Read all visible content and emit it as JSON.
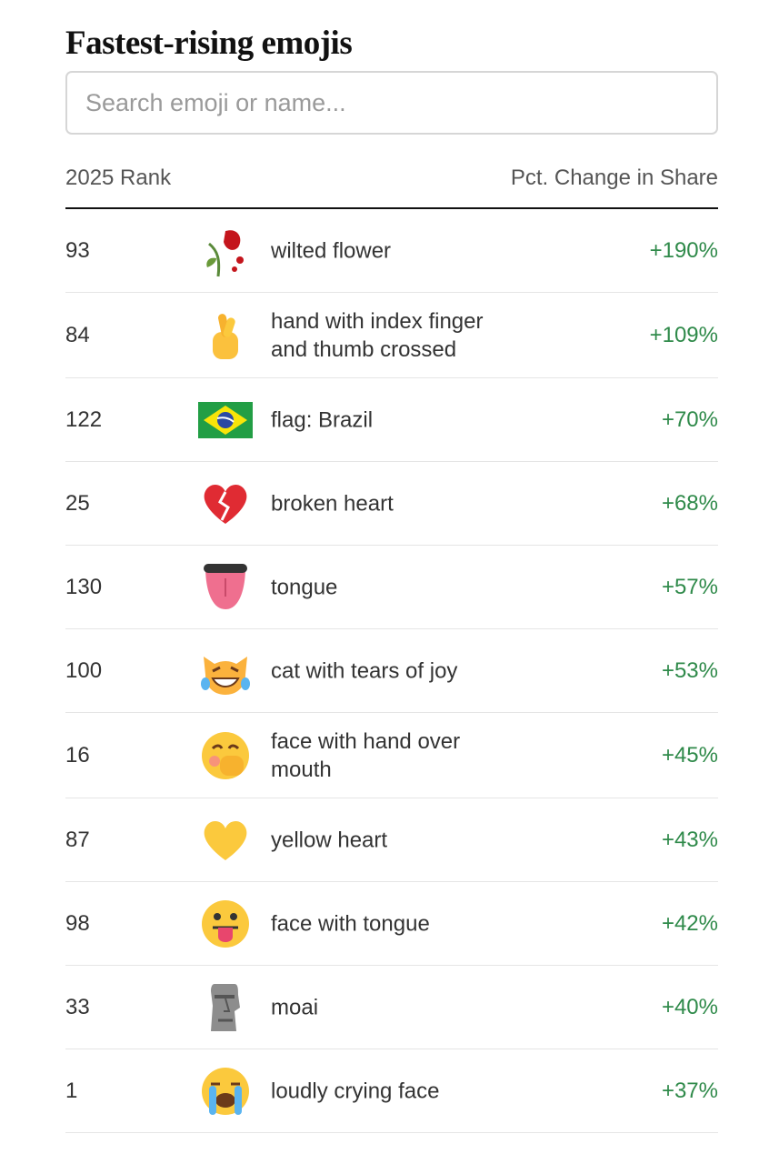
{
  "header": {
    "title": "Fastest-rising emojis"
  },
  "search": {
    "placeholder": "Search emoji or name..."
  },
  "table": {
    "columns": [
      "2025 Rank",
      "Pct. Change in Share"
    ],
    "rows": [
      {
        "rank": 93,
        "name": "wilted flower",
        "change": "+190%"
      },
      {
        "rank": 84,
        "name": "hand with index finger and thumb crossed",
        "change": "+109%"
      },
      {
        "rank": 122,
        "name": "flag: Brazil",
        "change": "+70%"
      },
      {
        "rank": 25,
        "name": "broken heart",
        "change": "+68%"
      },
      {
        "rank": 130,
        "name": "tongue",
        "change": "+57%"
      },
      {
        "rank": 100,
        "name": "cat with tears of joy",
        "change": "+53%"
      },
      {
        "rank": 16,
        "name": "face with hand over mouth",
        "change": "+45%"
      },
      {
        "rank": 87,
        "name": "yellow heart",
        "change": "+43%"
      },
      {
        "rank": 98,
        "name": "face with tongue",
        "change": "+42%"
      },
      {
        "rank": 33,
        "name": "moai",
        "change": "+40%"
      },
      {
        "rank": 1,
        "name": "loudly crying face",
        "change": "+37%"
      }
    ]
  }
}
